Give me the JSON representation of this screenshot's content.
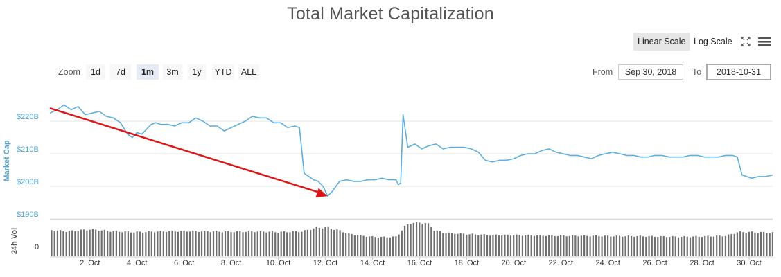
{
  "title": "Total Market Capitalization",
  "toolbar": {
    "linear_scale": "Linear Scale",
    "log_scale": "Log Scale",
    "fullscreen_icon": "expand-icon",
    "menu_icon": "hamburger-menu-icon"
  },
  "zoom": {
    "label": "Zoom",
    "buttons": [
      "1d",
      "7d",
      "1m",
      "3m",
      "1y",
      "YTD",
      "ALL"
    ],
    "active": "1m"
  },
  "range": {
    "from_label": "From",
    "from_value": "Sep 30, 2018",
    "to_label": "To",
    "to_value": "2018-10-31"
  },
  "colors": {
    "line": "#5aaee0",
    "axis_label": "#4da3d8",
    "volume": "#6e6e6e",
    "grid": "#e6e6e6",
    "annotation": "#e01414"
  },
  "chart_data": [
    {
      "type": "line",
      "ylabel": "Market Cap",
      "yticks": [
        "$190B",
        "$200B",
        "$210B",
        "$220B"
      ],
      "ylim": [
        190,
        230
      ],
      "x_unit": "day of October 2018",
      "xlim": [
        0.3,
        31.0
      ],
      "grid": true,
      "series": [
        {
          "x": [
            0.3,
            0.6,
            0.9,
            1.2,
            1.5,
            1.8,
            2.1,
            2.4,
            2.7,
            3.0,
            3.3,
            3.6,
            3.8,
            4.0,
            4.2,
            4.4,
            4.6,
            4.8,
            5.0,
            5.3,
            5.6,
            5.9,
            6.2,
            6.5,
            6.8,
            7.1,
            7.4,
            7.7,
            8.0,
            8.3,
            8.6,
            8.9,
            9.2,
            9.5,
            9.8,
            10.1,
            10.4,
            10.7,
            10.9,
            11.1,
            11.3,
            11.5,
            11.7,
            11.9,
            12.1,
            12.3,
            12.6,
            12.9,
            13.2,
            13.5,
            13.8,
            14.1,
            14.4,
            14.7,
            15.0,
            15.1,
            15.2,
            15.3,
            15.5,
            15.8,
            16.1,
            16.4,
            16.7,
            17.0,
            17.3,
            17.6,
            17.9,
            18.2,
            18.5,
            18.8,
            19.1,
            19.4,
            19.7,
            20.0,
            20.3,
            20.6,
            20.9,
            21.2,
            21.5,
            21.8,
            22.1,
            22.4,
            22.7,
            23.0,
            23.3,
            23.6,
            23.9,
            24.2,
            24.5,
            24.8,
            25.1,
            25.4,
            25.7,
            26.0,
            26.3,
            26.6,
            26.9,
            27.2,
            27.5,
            27.8,
            28.1,
            28.4,
            28.7,
            29.0,
            29.3,
            29.5,
            29.7,
            29.9,
            30.1,
            30.4,
            30.7,
            31.0
          ],
          "y": [
            222.5,
            223.5,
            225.0,
            223.5,
            224.5,
            222.0,
            222.5,
            223.0,
            221.5,
            221.0,
            219.5,
            216.0,
            215.0,
            216.5,
            216.0,
            217.5,
            219.0,
            219.5,
            219.0,
            219.0,
            218.5,
            219.5,
            219.5,
            221.0,
            220.0,
            218.5,
            218.5,
            217.0,
            218.0,
            219.0,
            220.0,
            221.5,
            221.0,
            221.0,
            219.5,
            219.5,
            218.0,
            218.5,
            218.0,
            204.0,
            203.0,
            202.0,
            201.5,
            200.0,
            197.0,
            198.5,
            201.5,
            202.0,
            201.5,
            201.5,
            202.0,
            202.0,
            202.5,
            202.0,
            202.0,
            200.5,
            201.0,
            222.0,
            212.0,
            213.0,
            211.5,
            212.5,
            213.0,
            211.5,
            212.0,
            212.0,
            212.0,
            211.5,
            210.5,
            208.0,
            207.5,
            208.0,
            208.0,
            208.5,
            209.5,
            210.0,
            210.0,
            211.0,
            211.5,
            210.5,
            210.0,
            209.5,
            209.5,
            209.0,
            208.5,
            209.5,
            210.0,
            210.5,
            210.0,
            209.5,
            209.5,
            209.0,
            209.0,
            209.5,
            209.5,
            209.0,
            209.0,
            209.0,
            209.5,
            209.5,
            209.0,
            209.0,
            209.0,
            209.5,
            209.5,
            209.0,
            203.5,
            203.0,
            202.5,
            203.0,
            203.0,
            203.5
          ]
        }
      ]
    },
    {
      "type": "bar",
      "ylabel": "24h Vol",
      "yticks": [
        "0"
      ],
      "x_unit": "day of October 2018",
      "x_ticks": [
        "2. Oct",
        "4. Oct",
        "6. Oct",
        "8. Oct",
        "10. Oct",
        "12. Oct",
        "14. Oct",
        "16. Oct",
        "18. Oct",
        "20. Oct",
        "22. Oct",
        "24. Oct",
        "26. Oct",
        "28. Oct",
        "30. Oct"
      ],
      "x_tick_positions": [
        2,
        4,
        6,
        8,
        10,
        12,
        14,
        16,
        18,
        20,
        22,
        24,
        26,
        28,
        30
      ],
      "relative_volume_profile": {
        "x": [
          0.3,
          1.0,
          2.0,
          3.0,
          4.0,
          5.0,
          6.0,
          7.0,
          8.0,
          9.0,
          10.0,
          11.0,
          11.5,
          12.0,
          12.5,
          13.0,
          13.5,
          14.0,
          14.5,
          15.0,
          15.3,
          15.6,
          16.0,
          16.3,
          16.6,
          17.0,
          18.0,
          19.0,
          20.0,
          21.0,
          22.0,
          23.0,
          24.0,
          25.0,
          26.0,
          27.0,
          28.0,
          29.0,
          29.5,
          30.0,
          31.0
        ],
        "v": [
          0.78,
          0.74,
          0.8,
          0.74,
          0.72,
          0.74,
          0.75,
          0.74,
          0.73,
          0.74,
          0.72,
          0.74,
          0.84,
          0.86,
          0.78,
          0.66,
          0.61,
          0.58,
          0.57,
          0.58,
          0.86,
          1.0,
          1.0,
          0.98,
          0.78,
          0.7,
          0.66,
          0.63,
          0.63,
          0.62,
          0.61,
          0.61,
          0.6,
          0.6,
          0.59,
          0.58,
          0.59,
          0.61,
          0.72,
          0.72,
          0.7
        ]
      }
    }
  ],
  "annotation": {
    "type": "arrow",
    "from": {
      "x": 0.3,
      "y": 224.0
    },
    "to": {
      "x": 12.1,
      "y": 197.0
    }
  }
}
